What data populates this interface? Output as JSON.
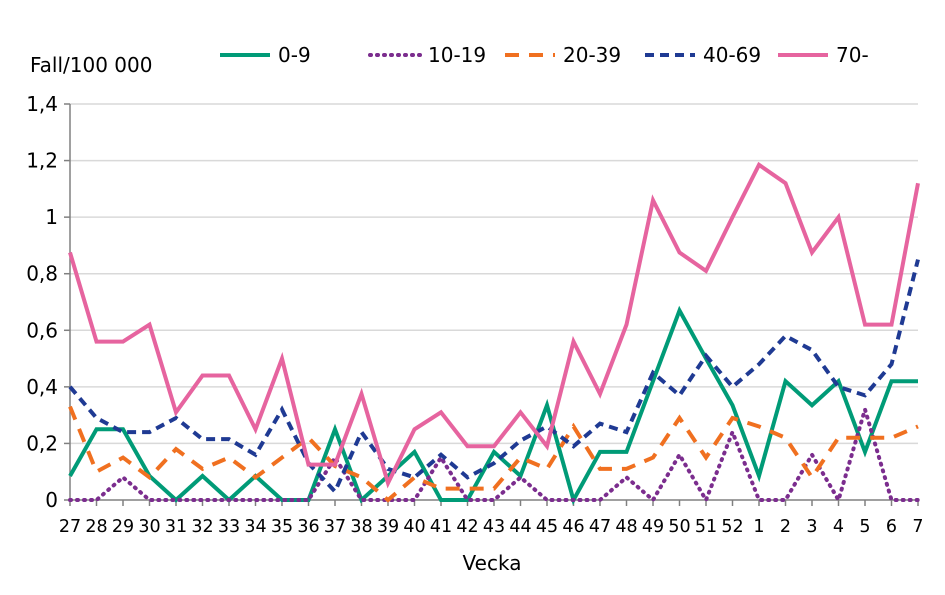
{
  "chart_data": {
    "type": "line",
    "ylabel": "Fall/100 000",
    "xlabel": "Vecka",
    "ylim": [
      0,
      1.4
    ],
    "yticks": [
      "0",
      "0,2",
      "0,4",
      "0,6",
      "0,8",
      "1",
      "1,2",
      "1,4"
    ],
    "grid": true,
    "legend": "top",
    "categories": [
      "27",
      "28",
      "29",
      "30",
      "31",
      "32",
      "33",
      "34",
      "35",
      "36",
      "37",
      "38",
      "39",
      "40",
      "41",
      "42",
      "43",
      "44",
      "45",
      "46",
      "47",
      "48",
      "49",
      "50",
      "51",
      "52",
      "1",
      "2",
      "3",
      "4",
      "5",
      "6",
      "7"
    ],
    "series": [
      {
        "name": "0-9",
        "color": "#009b77",
        "dash": "solid",
        "values": [
          0.085,
          0.25,
          0.25,
          0.085,
          0,
          0.085,
          0,
          0.085,
          0,
          0,
          0.25,
          0,
          0.085,
          0.17,
          0,
          0,
          0.17,
          0.085,
          0.335,
          0,
          0.17,
          0.17,
          0.42,
          0.67,
          0.5,
          0.335,
          0.085,
          0.42,
          0.335,
          0.42,
          0.17,
          0.42,
          0.42
        ]
      },
      {
        "name": "10-19",
        "color": "#7b2d8e",
        "dash": "dot",
        "values": [
          0,
          0,
          0.08,
          0,
          0,
          0,
          0,
          0,
          0,
          0,
          0.15,
          0,
          0,
          0,
          0.15,
          0,
          0,
          0.08,
          0,
          0,
          0,
          0.08,
          0,
          0.16,
          0,
          0.24,
          0,
          0,
          0.16,
          0,
          0.32,
          0,
          0
        ]
      },
      {
        "name": "20-39",
        "color": "#f07020",
        "dash": "dash",
        "values": [
          0.33,
          0.1,
          0.15,
          0.08,
          0.18,
          0.11,
          0.15,
          0.08,
          0.15,
          0.22,
          0.12,
          0.08,
          0,
          0.08,
          0.04,
          0.04,
          0.04,
          0.15,
          0.11,
          0.26,
          0.11,
          0.11,
          0.15,
          0.29,
          0.15,
          0.29,
          0.26,
          0.22,
          0.08,
          0.22,
          0.22,
          0.22,
          0.26
        ]
      },
      {
        "name": "40-69",
        "color": "#1f3a93",
        "dash": "shortdash",
        "values": [
          0.4,
          0.29,
          0.24,
          0.24,
          0.29,
          0.215,
          0.215,
          0.16,
          0.32,
          0.13,
          0.03,
          0.24,
          0.11,
          0.08,
          0.16,
          0.08,
          0.13,
          0.21,
          0.26,
          0.19,
          0.27,
          0.24,
          0.45,
          0.37,
          0.51,
          0.4,
          0.48,
          0.58,
          0.53,
          0.4,
          0.37,
          0.48,
          0.85
        ]
      },
      {
        "name": "70-",
        "color": "#e6649f",
        "dash": "solid",
        "values": [
          0.875,
          0.56,
          0.56,
          0.62,
          0.31,
          0.44,
          0.44,
          0.25,
          0.5,
          0.125,
          0.125,
          0.375,
          0.06,
          0.25,
          0.31,
          0.19,
          0.19,
          0.31,
          0.19,
          0.56,
          0.375,
          0.62,
          1.06,
          0.875,
          0.81,
          1.0,
          1.185,
          1.12,
          0.875,
          1.0,
          0.62,
          0.62,
          1.12
        ]
      }
    ]
  }
}
